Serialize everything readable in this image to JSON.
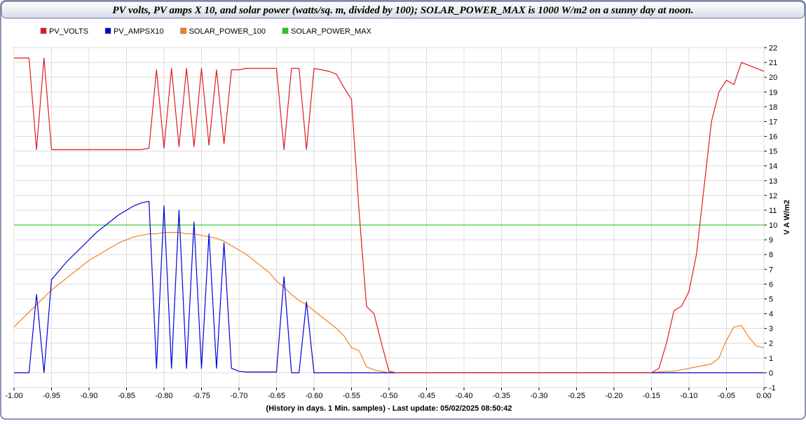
{
  "chart_data": {
    "type": "line",
    "title": "PV volts, PV amps X 10, and solar power (watts/sq. m, divided by 100); SOLAR_POWER_MAX is 1000 W/m2 on a sunny day at noon.",
    "x_label": "(History in days. 1 Min. samples) - Last update: 05/02/2025 08:50:42",
    "y_label": "V A W/m2",
    "grid": true,
    "legend": "top-left",
    "xlim": [
      -1,
      0
    ],
    "ylim": [
      -1,
      22
    ],
    "xticks": [
      {
        "value": -1,
        "label": "-1.00"
      },
      {
        "value": -0.95,
        "label": "-0.95"
      },
      {
        "value": -0.9,
        "label": "-0.90"
      },
      {
        "value": -0.85,
        "label": "-0.85"
      },
      {
        "value": -0.8,
        "label": "-0.80"
      },
      {
        "value": -0.75,
        "label": "-0.75"
      },
      {
        "value": -0.7,
        "label": "-0.70"
      },
      {
        "value": -0.65,
        "label": "-0.65"
      },
      {
        "value": -0.6,
        "label": "-0.60"
      },
      {
        "value": -0.55,
        "label": "-0.55"
      },
      {
        "value": -0.5,
        "label": "-0.50"
      },
      {
        "value": -0.45,
        "label": "-0.45"
      },
      {
        "value": -0.4,
        "label": "-0.40"
      },
      {
        "value": -0.35,
        "label": "-0.35"
      },
      {
        "value": -0.3,
        "label": "-0.30"
      },
      {
        "value": -0.25,
        "label": "-0.25"
      },
      {
        "value": -0.2,
        "label": "-0.20"
      },
      {
        "value": -0.15,
        "label": "-0.15"
      },
      {
        "value": -0.1,
        "label": "-0.10"
      },
      {
        "value": -0.05,
        "label": "-0.05"
      },
      {
        "value": 0,
        "label": "0.00"
      }
    ],
    "yticks": [
      -1,
      0,
      1,
      2,
      3,
      4,
      5,
      6,
      7,
      8,
      9,
      10,
      11,
      12,
      13,
      14,
      15,
      16,
      17,
      18,
      19,
      20,
      21,
      22
    ],
    "x": [
      -1,
      -0.99,
      -0.98,
      -0.97,
      -0.96,
      -0.95,
      -0.94,
      -0.93,
      -0.92,
      -0.91,
      -0.9,
      -0.89,
      -0.88,
      -0.87,
      -0.86,
      -0.85,
      -0.84,
      -0.83,
      -0.82,
      -0.81,
      -0.8,
      -0.79,
      -0.78,
      -0.77,
      -0.76,
      -0.75,
      -0.74,
      -0.73,
      -0.72,
      -0.71,
      -0.7,
      -0.69,
      -0.68,
      -0.67,
      -0.66,
      -0.65,
      -0.64,
      -0.63,
      -0.62,
      -0.61,
      -0.6,
      -0.59,
      -0.58,
      -0.57,
      -0.56,
      -0.55,
      -0.54,
      -0.53,
      -0.52,
      -0.51,
      -0.5,
      -0.49,
      -0.48,
      -0.47,
      -0.46,
      -0.45,
      -0.44,
      -0.43,
      -0.42,
      -0.41,
      -0.4,
      -0.39,
      -0.38,
      -0.37,
      -0.36,
      -0.35,
      -0.34,
      -0.33,
      -0.32,
      -0.31,
      -0.3,
      -0.29,
      -0.28,
      -0.27,
      -0.26,
      -0.25,
      -0.24,
      -0.23,
      -0.22,
      -0.21,
      -0.2,
      -0.19,
      -0.18,
      -0.17,
      -0.16,
      -0.15,
      -0.14,
      -0.13,
      -0.12,
      -0.11,
      -0.1,
      -0.09,
      -0.08,
      -0.07,
      -0.06,
      -0.05,
      -0.04,
      -0.03,
      -0.02,
      -0.01,
      0
    ],
    "series": [
      {
        "name": "PV_VOLTS",
        "color": "#e41a1c",
        "values": [
          21.3,
          21.3,
          21.3,
          15.1,
          21.3,
          15.1,
          15.1,
          15.1,
          15.1,
          15.1,
          15.1,
          15.1,
          15.1,
          15.1,
          15.1,
          15.1,
          15.1,
          15.1,
          15.2,
          20.5,
          15.2,
          20.6,
          15.3,
          20.6,
          15.3,
          20.6,
          15.4,
          20.5,
          15.5,
          20.5,
          20.5,
          20.6,
          20.6,
          20.6,
          20.6,
          20.6,
          15.1,
          20.6,
          20.6,
          15.1,
          20.6,
          20.5,
          20.4,
          20.2,
          19.3,
          18.5,
          11.0,
          4.5,
          4.0,
          2.0,
          0.1,
          0,
          0,
          0,
          0,
          0,
          0,
          0,
          0,
          0,
          0,
          0,
          0,
          0,
          0,
          0,
          0,
          0,
          0,
          0,
          0,
          0,
          0,
          0,
          0,
          0,
          0,
          0,
          0,
          0,
          0,
          0,
          0,
          0,
          0,
          0,
          0.3,
          2.0,
          4.2,
          4.5,
          5.5,
          8.0,
          12.5,
          17.0,
          19.0,
          19.8,
          19.5,
          21.0,
          20.8,
          20.6,
          20.4
        ]
      },
      {
        "name": "PV_AMPSX10",
        "color": "#0000dd",
        "values": [
          0,
          0,
          0,
          5.3,
          0,
          6.3,
          6.9,
          7.5,
          8.0,
          8.5,
          9.0,
          9.5,
          9.9,
          10.3,
          10.7,
          11.0,
          11.3,
          11.5,
          11.6,
          0.3,
          11.3,
          0.3,
          11.0,
          0.3,
          10.2,
          0.3,
          9.4,
          0.3,
          8.8,
          0.3,
          0.1,
          0.05,
          0.05,
          0.05,
          0.05,
          0.05,
          6.5,
          0,
          0,
          4.8,
          0,
          0,
          0,
          0,
          0,
          0,
          0,
          0,
          0,
          0,
          0,
          0,
          0,
          0,
          0,
          0,
          0,
          0,
          0,
          0,
          0,
          0,
          0,
          0,
          0,
          0,
          0,
          0,
          0,
          0,
          0,
          0,
          0,
          0,
          0,
          0,
          0,
          0,
          0,
          0,
          0,
          0,
          0,
          0,
          0,
          0,
          0,
          0,
          0,
          0,
          0,
          0,
          0,
          0,
          0,
          0,
          0,
          0,
          0,
          0,
          0
        ]
      },
      {
        "name": "SOLAR_POWER_100",
        "color": "#f0821e",
        "values": [
          3.1,
          3.6,
          4.1,
          4.6,
          5.1,
          5.6,
          6.0,
          6.4,
          6.8,
          7.2,
          7.6,
          7.9,
          8.2,
          8.5,
          8.8,
          9.0,
          9.2,
          9.3,
          9.4,
          9.4,
          9.5,
          9.5,
          9.5,
          9.4,
          9.4,
          9.3,
          9.2,
          9.1,
          8.9,
          8.6,
          8.3,
          8.0,
          7.6,
          7.2,
          6.8,
          6.2,
          5.8,
          5.3,
          4.9,
          4.6,
          4.2,
          3.8,
          3.4,
          3.0,
          2.5,
          1.7,
          1.5,
          0.4,
          0.2,
          0.1,
          0,
          0,
          0,
          0,
          0,
          0,
          0,
          0,
          0,
          0,
          0,
          0,
          0,
          0,
          0,
          0,
          0,
          0,
          0,
          0,
          0,
          0,
          0,
          0,
          0,
          0,
          0,
          0,
          0,
          0,
          0,
          0,
          0,
          0,
          0,
          0,
          0.05,
          0.1,
          0.1,
          0.2,
          0.3,
          0.4,
          0.5,
          0.6,
          1.0,
          2.2,
          3.1,
          3.2,
          2.4,
          1.8,
          1.7
        ]
      },
      {
        "name": "SOLAR_POWER_MAX",
        "color": "#22cc22",
        "values": [
          10,
          10,
          10,
          10,
          10,
          10,
          10,
          10,
          10,
          10,
          10,
          10,
          10,
          10,
          10,
          10,
          10,
          10,
          10,
          10,
          10,
          10,
          10,
          10,
          10,
          10,
          10,
          10,
          10,
          10,
          10,
          10,
          10,
          10,
          10,
          10,
          10,
          10,
          10,
          10,
          10,
          10,
          10,
          10,
          10,
          10,
          10,
          10,
          10,
          10,
          10,
          10,
          10,
          10,
          10,
          10,
          10,
          10,
          10,
          10,
          10,
          10,
          10,
          10,
          10,
          10,
          10,
          10,
          10,
          10,
          10,
          10,
          10,
          10,
          10,
          10,
          10,
          10,
          10,
          10,
          10,
          10,
          10,
          10,
          10,
          10,
          10,
          10,
          10,
          10,
          10,
          10,
          10,
          10,
          10,
          10,
          10,
          10,
          10,
          10,
          10
        ]
      }
    ]
  }
}
